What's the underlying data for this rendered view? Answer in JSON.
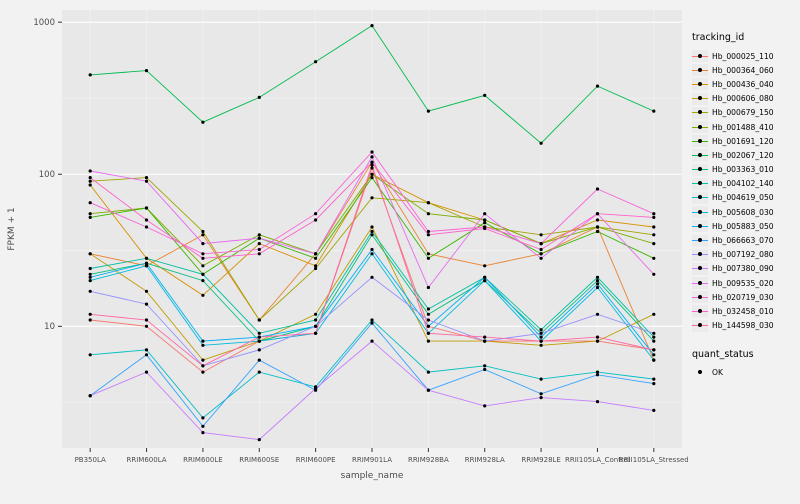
{
  "chart_data": {
    "type": "line",
    "yscale": "log10",
    "ylim": [
      1.6,
      1200
    ],
    "grid": true,
    "legend_position": "right",
    "xlabel": "sample_name",
    "ylabel": "FPKM + 1",
    "y_tick_labels": [
      "10",
      "100",
      "1000"
    ],
    "y_major_breaks": [
      10,
      100,
      1000
    ],
    "y_minor_breaks": [
      3.162,
      31.62,
      316.2
    ],
    "x_categories": [
      "PB350LA",
      "RRIM600LA",
      "RRIM600LE",
      "RRIM600SE",
      "RRIM600PE",
      "RRIM901LA",
      "RRIM928BA",
      "RRIM928LA",
      "RRIM928LE",
      "RRII105LA_Control",
      "RRII105LA_Stressed"
    ],
    "legend_title": "tracking_id",
    "legend2_title": "quant_status",
    "legend2_items": [
      "OK"
    ],
    "series": [
      {
        "name": "Hb_000025_110",
        "color": "#F8766D",
        "values": [
          11,
          10,
          5,
          8,
          9,
          110,
          10,
          8,
          8,
          8,
          7
        ]
      },
      {
        "name": "Hb_000364_060",
        "color": "#EA8331",
        "values": [
          30,
          25,
          40,
          11,
          30,
          120,
          30,
          25,
          30,
          45,
          6
        ]
      },
      {
        "name": "Hb_000436_040",
        "color": "#D89000",
        "values": [
          85,
          28,
          16,
          35,
          25,
          100,
          65,
          50,
          35,
          50,
          45
        ]
      },
      {
        "name": "Hb_000606_080",
        "color": "#C09B00",
        "values": [
          30,
          17,
          6,
          8,
          12,
          45,
          8,
          8,
          7.5,
          8,
          12
        ]
      },
      {
        "name": "Hb_000679_150",
        "color": "#A3A500",
        "values": [
          90,
          95,
          42,
          11,
          24,
          70,
          65,
          45,
          40,
          45,
          40
        ]
      },
      {
        "name": "Hb_001488_410",
        "color": "#7CAE00",
        "values": [
          55,
          60,
          25,
          40,
          30,
          100,
          55,
          50,
          35,
          45,
          35
        ]
      },
      {
        "name": "Hb_001691_120",
        "color": "#39B600",
        "values": [
          52,
          60,
          22,
          38,
          28,
          95,
          28,
          48,
          30,
          42,
          28
        ]
      },
      {
        "name": "Hb_002067_120",
        "color": "#00BB4E",
        "values": [
          450,
          480,
          220,
          320,
          550,
          950,
          260,
          330,
          160,
          380,
          260
        ]
      },
      {
        "name": "Hb_003363_010",
        "color": "#00BF7D",
        "values": [
          22,
          26,
          20,
          8,
          10,
          40,
          12,
          20,
          9,
          20,
          8
        ]
      },
      {
        "name": "Hb_004102_140",
        "color": "#00C1A3",
        "values": [
          24,
          28,
          22,
          9,
          11,
          42,
          13,
          21,
          9.5,
          21,
          8.5
        ]
      },
      {
        "name": "Hb_004619_050",
        "color": "#00BFC4",
        "values": [
          6.5,
          7,
          2.5,
          5,
          4,
          11,
          5,
          5.5,
          4.5,
          5,
          4.5
        ]
      },
      {
        "name": "Hb_005608_030",
        "color": "#00BAE0",
        "values": [
          20,
          25,
          7.5,
          8,
          9,
          30,
          9,
          20,
          8,
          18,
          6
        ]
      },
      {
        "name": "Hb_005883_050",
        "color": "#00B0F6",
        "values": [
          21,
          26,
          8,
          8.5,
          10,
          32,
          10,
          21,
          8.5,
          19,
          6.5
        ]
      },
      {
        "name": "Hb_066663_070",
        "color": "#35A2FF",
        "values": [
          3.5,
          6.5,
          2.2,
          6,
          3.8,
          10.5,
          3.8,
          5.2,
          3.6,
          4.8,
          4.2
        ]
      },
      {
        "name": "Hb_007192_080",
        "color": "#9590FF",
        "values": [
          17,
          14,
          5.5,
          7,
          10,
          21,
          11,
          8,
          9,
          12,
          9
        ]
      },
      {
        "name": "Hb_007380_090",
        "color": "#C77CFF",
        "values": [
          3.5,
          5,
          2.0,
          1.8,
          3.9,
          8,
          3.8,
          3.0,
          3.4,
          3.2,
          2.8
        ]
      },
      {
        "name": "Hb_009535_020",
        "color": "#E76BF3",
        "values": [
          105,
          90,
          35,
          38,
          30,
          130,
          18,
          55,
          28,
          55,
          22
        ]
      },
      {
        "name": "Hb_020719_030",
        "color": "#FA62DB",
        "values": [
          65,
          45,
          30,
          32,
          55,
          140,
          42,
          45,
          35,
          80,
          55
        ]
      },
      {
        "name": "Hb_032458_010",
        "color": "#FF61CC",
        "values": [
          95,
          50,
          28,
          30,
          50,
          120,
          40,
          44,
          32,
          55,
          52
        ]
      },
      {
        "name": "Hb_144598_030",
        "color": "#FF67A4",
        "values": [
          12,
          11,
          5.5,
          8.5,
          9,
          115,
          9,
          8.5,
          8,
          8.5,
          7
        ]
      }
    ]
  }
}
